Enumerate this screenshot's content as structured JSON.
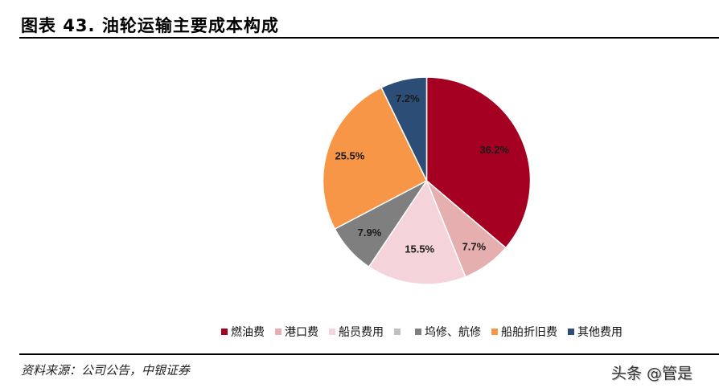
{
  "header": {
    "title": "图表 43. 油轮运输主要成本构成"
  },
  "chart_data": {
    "type": "pie",
    "title": "油轮运输主要成本构成",
    "start_angle": "12 o'clock, clockwise",
    "categories": [
      "燃油费",
      "港口费",
      "船员费用",
      "",
      "坞修、航修",
      "船舶折旧费",
      "其他费用"
    ],
    "values": [
      36.2,
      7.7,
      15.5,
      0,
      7.9,
      25.5,
      7.2
    ],
    "labels": [
      "36.2%",
      "7.7%",
      "15.5%",
      "",
      "7.9%",
      "25.5%",
      "7.2%"
    ],
    "colors": [
      "#A50021",
      "#E6AFAF",
      "#F5D3DA",
      "#BFBFBF",
      "#7F7F7F",
      "#F79646",
      "#2C4D75"
    ],
    "legend_position": "bottom",
    "unit": "%"
  },
  "legend": {
    "items": [
      {
        "label": "燃油费",
        "color": "#A50021"
      },
      {
        "label": "港口费",
        "color": "#E6AFAF"
      },
      {
        "label": "船员费用",
        "color": "#F5D3DA"
      },
      {
        "label": "",
        "color": "#BFBFBF"
      },
      {
        "label": "坞修、航修",
        "color": "#7F7F7F"
      },
      {
        "label": "船舶折旧费",
        "color": "#F79646"
      },
      {
        "label": "其他费用",
        "color": "#2C4D75"
      }
    ]
  },
  "footer": {
    "source": "资料来源：公司公告，中银证券",
    "watermark": "头条 @管是"
  }
}
